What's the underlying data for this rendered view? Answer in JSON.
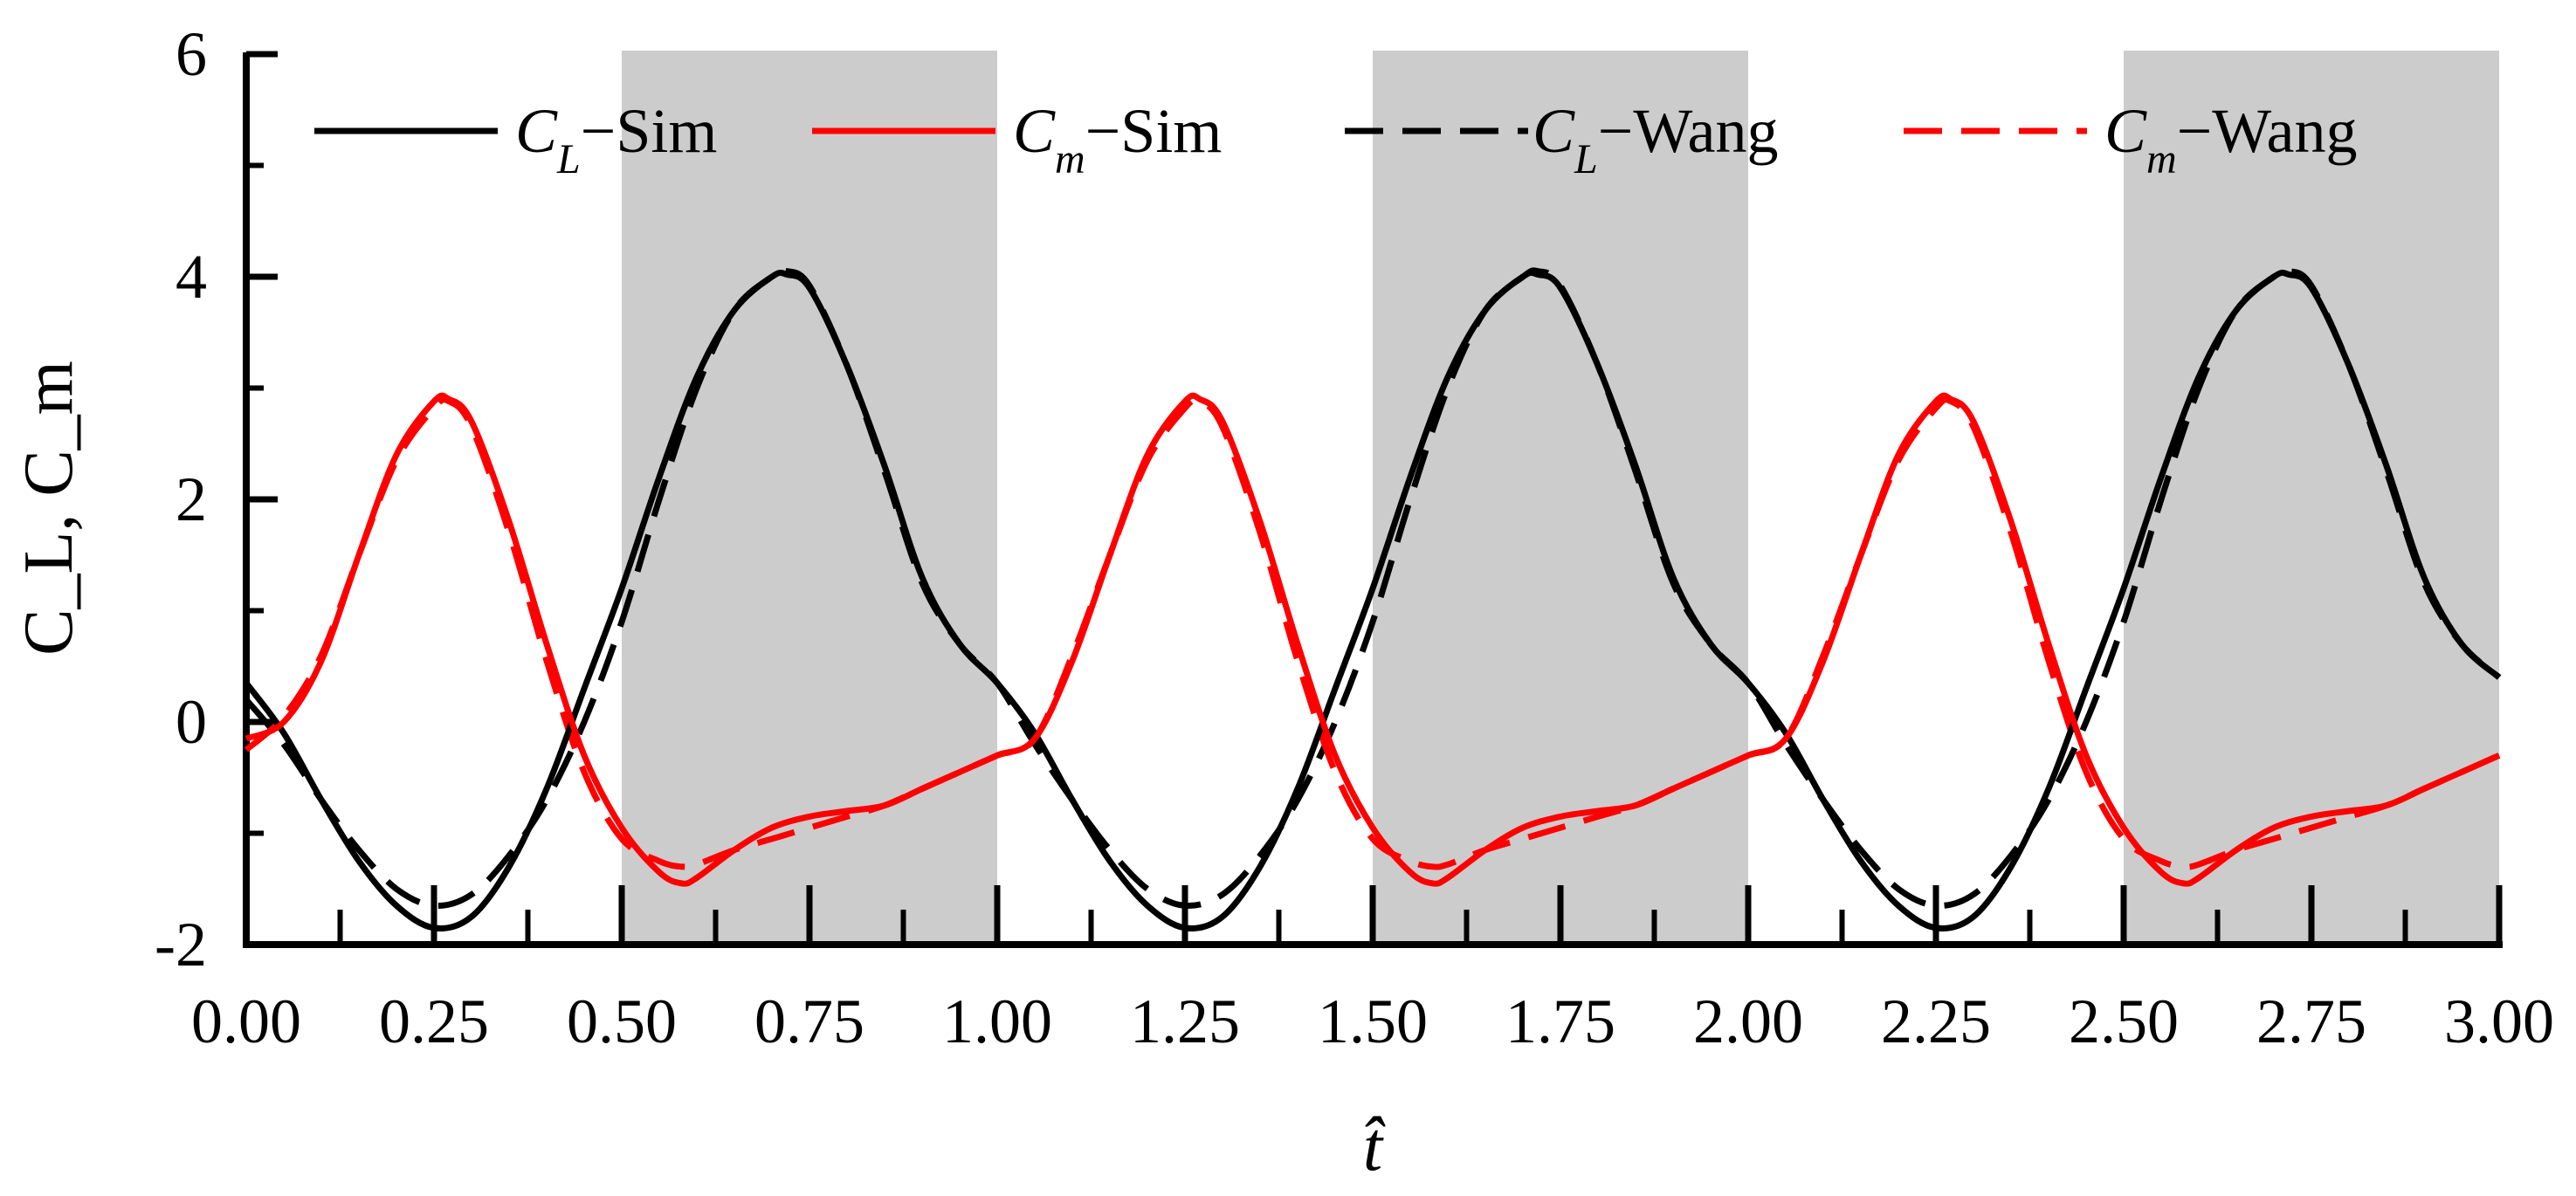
{
  "chart_data": {
    "type": "line",
    "title": "",
    "xlabel": "t̂",
    "ylabel": "C_L, C_m",
    "xlim": [
      0,
      3
    ],
    "ylim": [
      -2,
      6
    ],
    "x_ticks": [
      "0.00",
      "0.25",
      "0.50",
      "0.75",
      "1.00",
      "1.25",
      "1.50",
      "1.75",
      "2.00",
      "2.25",
      "2.50",
      "2.75",
      "3.00"
    ],
    "y_ticks": [
      "-2",
      "0",
      "2",
      "4",
      "6"
    ],
    "shaded_regions": [
      [
        0.5,
        1.0
      ],
      [
        1.5,
        2.0
      ],
      [
        2.5,
        3.0
      ]
    ],
    "shade_color": "#cccccc",
    "grid": false,
    "legend_position": "top",
    "series": [
      {
        "name": "C_L-Sim",
        "legend_main": "C",
        "legend_sub": "L",
        "legend_suffix": "−Sim",
        "color": "#000000",
        "dash": "solid",
        "x": [
          0.0,
          0.05,
          0.1,
          0.15,
          0.2,
          0.25,
          0.3,
          0.35,
          0.4,
          0.45,
          0.5,
          0.55,
          0.6,
          0.65,
          0.7,
          0.72,
          0.75,
          0.8,
          0.85,
          0.9,
          0.95,
          1.0,
          1.05,
          1.1,
          1.15,
          1.2,
          1.25,
          1.3,
          1.35,
          1.4,
          1.45,
          1.5,
          1.55,
          1.6,
          1.65,
          1.7,
          1.72,
          1.75,
          1.8,
          1.85,
          1.9,
          1.95,
          2.0,
          2.05,
          2.1,
          2.15,
          2.2,
          2.25,
          2.3,
          2.35,
          2.4,
          2.45,
          2.5,
          2.55,
          2.6,
          2.65,
          2.7,
          2.72,
          2.75,
          2.8,
          2.85,
          2.9,
          2.95,
          3.0
        ],
        "values": [
          0.35,
          -0.1,
          -0.7,
          -1.25,
          -1.65,
          -1.85,
          -1.75,
          -1.3,
          -0.6,
          0.3,
          1.2,
          2.2,
          3.1,
          3.7,
          4.0,
          4.02,
          3.9,
          3.2,
          2.3,
          1.3,
          0.7,
          0.35,
          -0.1,
          -0.7,
          -1.25,
          -1.65,
          -1.85,
          -1.75,
          -1.3,
          -0.6,
          0.3,
          1.2,
          2.2,
          3.1,
          3.7,
          4.0,
          4.02,
          3.9,
          3.2,
          2.3,
          1.3,
          0.7,
          0.35,
          -0.1,
          -0.7,
          -1.25,
          -1.65,
          -1.85,
          -1.75,
          -1.3,
          -0.6,
          0.3,
          1.2,
          2.2,
          3.1,
          3.7,
          4.0,
          4.02,
          3.9,
          3.2,
          2.3,
          1.3,
          0.7,
          0.4
        ]
      },
      {
        "name": "C_m-Sim",
        "legend_main": "C",
        "legend_sub": "m",
        "legend_suffix": "−Sim",
        "color": "#ff0000",
        "dash": "solid",
        "x": [
          0.0,
          0.05,
          0.1,
          0.15,
          0.2,
          0.25,
          0.27,
          0.3,
          0.35,
          0.4,
          0.45,
          0.5,
          0.55,
          0.58,
          0.6,
          0.65,
          0.7,
          0.75,
          0.8,
          0.85,
          0.9,
          0.95,
          1.0,
          1.05,
          1.1,
          1.15,
          1.2,
          1.25,
          1.27,
          1.3,
          1.35,
          1.4,
          1.45,
          1.5,
          1.55,
          1.58,
          1.6,
          1.65,
          1.7,
          1.75,
          1.8,
          1.85,
          1.9,
          1.95,
          2.0,
          2.05,
          2.1,
          2.15,
          2.2,
          2.25,
          2.27,
          2.3,
          2.35,
          2.4,
          2.45,
          2.5,
          2.55,
          2.58,
          2.6,
          2.65,
          2.7,
          2.75,
          2.8,
          2.85,
          2.9,
          2.95,
          3.0
        ],
        "values": [
          -0.15,
          0.0,
          0.55,
          1.5,
          2.4,
          2.88,
          2.9,
          2.7,
          1.8,
          0.7,
          -0.3,
          -0.95,
          -1.35,
          -1.45,
          -1.4,
          -1.15,
          -0.95,
          -0.85,
          -0.8,
          -0.75,
          -0.6,
          -0.45,
          -0.3,
          -0.15,
          0.55,
          1.5,
          2.4,
          2.88,
          2.9,
          2.7,
          1.8,
          0.7,
          -0.3,
          -0.95,
          -1.35,
          -1.45,
          -1.4,
          -1.15,
          -0.95,
          -0.85,
          -0.8,
          -0.75,
          -0.6,
          -0.45,
          -0.3,
          -0.15,
          0.55,
          1.5,
          2.4,
          2.88,
          2.9,
          2.7,
          1.8,
          0.7,
          -0.3,
          -0.95,
          -1.35,
          -1.45,
          -1.4,
          -1.15,
          -0.95,
          -0.85,
          -0.8,
          -0.75,
          -0.6,
          -0.45,
          -0.3
        ]
      },
      {
        "name": "C_L-Wang",
        "legend_main": "C",
        "legend_sub": "L",
        "legend_suffix": "−Wang",
        "color": "#000000",
        "dash": "dashed",
        "x": [
          0.0,
          0.05,
          0.1,
          0.15,
          0.2,
          0.25,
          0.3,
          0.35,
          0.4,
          0.45,
          0.5,
          0.55,
          0.6,
          0.65,
          0.7,
          0.72,
          0.75,
          0.8,
          0.85,
          0.9,
          0.95,
          1.0,
          1.05,
          1.1,
          1.15,
          1.2,
          1.25,
          1.3,
          1.35,
          1.4,
          1.45,
          1.5,
          1.55,
          1.6,
          1.65,
          1.7,
          1.72,
          1.75,
          1.8,
          1.85,
          1.9,
          1.95,
          2.0,
          2.05,
          2.1,
          2.15,
          2.2,
          2.25,
          2.3,
          2.35,
          2.4,
          2.45,
          2.5,
          2.55,
          2.6,
          2.65,
          2.7,
          2.72,
          2.75,
          2.8,
          2.85,
          2.9,
          2.95,
          3.0
        ],
        "values": [
          0.2,
          -0.2,
          -0.7,
          -1.15,
          -1.5,
          -1.65,
          -1.55,
          -1.2,
          -0.7,
          0.0,
          0.9,
          2.0,
          3.0,
          3.7,
          4.0,
          4.05,
          3.92,
          3.2,
          2.25,
          1.25,
          0.7,
          0.35,
          -0.2,
          -0.7,
          -1.15,
          -1.5,
          -1.65,
          -1.55,
          -1.2,
          -0.7,
          0.0,
          0.9,
          2.0,
          3.0,
          3.7,
          4.0,
          4.05,
          3.92,
          3.2,
          2.25,
          1.25,
          0.7,
          0.35,
          -0.2,
          -0.7,
          -1.15,
          -1.5,
          -1.65,
          -1.55,
          -1.2,
          -0.7,
          0.0,
          0.9,
          2.0,
          3.0,
          3.7,
          4.0,
          4.05,
          3.92,
          3.2,
          2.25,
          1.25,
          0.7,
          0.4
        ]
      },
      {
        "name": "C_m-Wang",
        "legend_main": "C",
        "legend_sub": "m",
        "legend_suffix": "−Wang",
        "color": "#ff0000",
        "dash": "dashed",
        "x": [
          0.0,
          0.05,
          0.1,
          0.15,
          0.2,
          0.25,
          0.27,
          0.3,
          0.35,
          0.4,
          0.45,
          0.5,
          0.55,
          0.58,
          0.6,
          0.65,
          0.7,
          0.75,
          0.8,
          0.85,
          0.9,
          0.95,
          1.0,
          1.05,
          1.1,
          1.15,
          1.2,
          1.25,
          1.27,
          1.3,
          1.35,
          1.4,
          1.45,
          1.5,
          1.55,
          1.58,
          1.6,
          1.65,
          1.7,
          1.75,
          1.8,
          1.85,
          1.9,
          1.95,
          2.0,
          2.05,
          2.1,
          2.15,
          2.2,
          2.25,
          2.27,
          2.3,
          2.35,
          2.4,
          2.45,
          2.5,
          2.55,
          2.58,
          2.6,
          2.65,
          2.7,
          2.75,
          2.8,
          2.85,
          2.9,
          2.95,
          3.0
        ],
        "values": [
          -0.25,
          0.05,
          0.6,
          1.5,
          2.35,
          2.82,
          2.88,
          2.65,
          1.7,
          0.55,
          -0.45,
          -1.05,
          -1.25,
          -1.3,
          -1.28,
          -1.15,
          -1.05,
          -0.95,
          -0.85,
          -0.75,
          -0.6,
          -0.45,
          -0.3,
          -0.15,
          0.6,
          1.5,
          2.35,
          2.82,
          2.88,
          2.65,
          1.7,
          0.55,
          -0.45,
          -1.05,
          -1.25,
          -1.3,
          -1.28,
          -1.15,
          -1.05,
          -0.95,
          -0.85,
          -0.75,
          -0.6,
          -0.45,
          -0.3,
          -0.15,
          0.6,
          1.5,
          2.35,
          2.82,
          2.88,
          2.65,
          1.7,
          0.55,
          -0.45,
          -1.05,
          -1.25,
          -1.3,
          -1.28,
          -1.15,
          -1.05,
          -0.95,
          -0.85,
          -0.75,
          -0.6,
          -0.45,
          -0.3
        ]
      }
    ]
  }
}
